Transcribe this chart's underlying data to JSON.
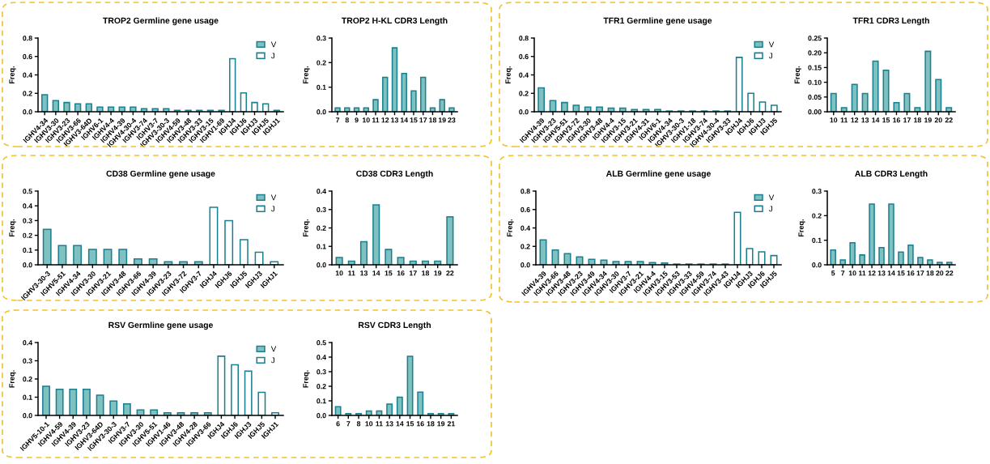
{
  "chart_data": [
    {
      "type": "bar",
      "title": "TROP2 Germline gene usage",
      "ylabel": "Freq.",
      "legend": "top right",
      "categories": [
        "IGHV4-34",
        "IGHV3-30",
        "IGHV3-23",
        "IGHV3-66",
        "IGHV3-64D",
        "IGHV6-1",
        "IGHV4-4",
        "IGHV4-39",
        "IGHV4-30-4",
        "IGHV3-74",
        "IGHV3-7",
        "IGHV3-30-3",
        "IGHV4-59",
        "IGHV3-48",
        "IGHV3-33",
        "IGHV3-15",
        "IGHV1-69",
        "IGHJ4",
        "IGHJ6",
        "IGHJ3",
        "IGHJ5",
        "IGHJ1"
      ],
      "series": [
        {
          "name": "V",
          "color": "#7fc0c0",
          "values": [
            0.185,
            0.12,
            0.1,
            0.085,
            0.085,
            0.05,
            0.05,
            0.05,
            0.05,
            0.033,
            0.033,
            0.033,
            0.016,
            0.016,
            0.016,
            0.016,
            0.016,
            null,
            null,
            null,
            null,
            null
          ]
        },
        {
          "name": "J",
          "color": "#ffffff",
          "values": [
            null,
            null,
            null,
            null,
            null,
            null,
            null,
            null,
            null,
            null,
            null,
            null,
            null,
            null,
            null,
            null,
            null,
            0.575,
            0.205,
            0.1,
            0.085,
            0.016
          ]
        }
      ],
      "ylim": [
        0,
        0.8
      ],
      "yticks": [
        {
          "value": 0,
          "label": "0.0"
        },
        {
          "value": 0.2,
          "label": "0.2"
        },
        {
          "value": 0.4,
          "label": "0.4"
        },
        {
          "value": 0.6,
          "label": "0.6"
        },
        {
          "value": 0.8,
          "label": "0.8"
        }
      ]
    },
    {
      "type": "bar",
      "title": "TROP2 H-KL CDR3 Length",
      "ylabel": "Freq.",
      "categories": [
        "7",
        "8",
        "9",
        "10",
        "11",
        "12",
        "13",
        "14",
        "15",
        "17",
        "18",
        "19",
        "23"
      ],
      "color": "#7fc0c0",
      "values": [
        0.016,
        0.016,
        0.016,
        0.016,
        0.049,
        0.14,
        0.26,
        0.156,
        0.085,
        0.14,
        0.016,
        0.049,
        0.016
      ],
      "ylim": [
        0,
        0.3
      ],
      "yticks": [
        {
          "value": 0,
          "label": "0.0"
        },
        {
          "value": 0.1,
          "label": "0.1"
        },
        {
          "value": 0.2,
          "label": "0.2"
        },
        {
          "value": 0.3,
          "label": "0.3"
        }
      ]
    },
    {
      "type": "bar",
      "title": "TFR1 Germline gene usage",
      "ylabel": "Freq.",
      "legend": "top right",
      "categories": [
        "IGHV4-39",
        "IGHV3-23",
        "IGHV5-51",
        "IGHV3-72",
        "IGHV3-30",
        "IGHV3-48",
        "IGHV4-4",
        "IGHV3-15",
        "IGHV3-21",
        "IGHV4-31",
        "IGHV6-1",
        "IGHV4-34",
        "IGHV3-30-3",
        "IGHV1-18",
        "IGHV3-74",
        "IGHV4-30-4",
        "IGHV3-33",
        "IGHJ4",
        "IGHJ6",
        "IGHJ3",
        "IGHJ5"
      ],
      "series": [
        {
          "name": "V",
          "color": "#7fc0c0",
          "values": [
            0.26,
            0.12,
            0.1,
            0.07,
            0.05,
            0.05,
            0.04,
            0.04,
            0.025,
            0.025,
            0.025,
            0.008,
            0.008,
            0.008,
            0.008,
            0.008,
            0.008,
            null,
            null,
            null,
            null
          ]
        },
        {
          "name": "J",
          "color": "#ffffff",
          "values": [
            null,
            null,
            null,
            null,
            null,
            null,
            null,
            null,
            null,
            null,
            null,
            null,
            null,
            null,
            null,
            null,
            null,
            0.59,
            0.2,
            0.105,
            0.07
          ]
        }
      ],
      "ylim": [
        0,
        0.8
      ],
      "yticks": [
        {
          "value": 0,
          "label": "0.0"
        },
        {
          "value": 0.2,
          "label": "0.2"
        },
        {
          "value": 0.4,
          "label": "0.4"
        },
        {
          "value": 0.6,
          "label": "0.6"
        },
        {
          "value": 0.8,
          "label": "0.8"
        }
      ]
    },
    {
      "type": "bar",
      "title": "TFR1 CDR3 Length",
      "ylabel": "Freq.",
      "categories": [
        "10",
        "11",
        "12",
        "13",
        "14",
        "15",
        "16",
        "17",
        "18",
        "19",
        "20",
        "22"
      ],
      "color": "#7fc0c0",
      "values": [
        0.062,
        0.014,
        0.093,
        0.062,
        0.172,
        0.141,
        0.031,
        0.062,
        0.014,
        0.205,
        0.109,
        0.014
      ],
      "ylim": [
        0,
        0.25
      ],
      "yticks": [
        {
          "value": 0,
          "label": "0.00"
        },
        {
          "value": 0.05,
          "label": "0.05"
        },
        {
          "value": 0.1,
          "label": "0.10"
        },
        {
          "value": 0.15,
          "label": "0.15"
        },
        {
          "value": 0.2,
          "label": "0.20"
        },
        {
          "value": 0.25,
          "label": "0.25"
        }
      ]
    },
    {
      "type": "bar",
      "title": "CD38 Germline gene usage",
      "ylabel": "Freq.",
      "legend": "top right",
      "categories": [
        "IGHV3-30-3",
        "IGHV5-51",
        "IGHV4-34",
        "IGHV3-30",
        "IGHV3-21",
        "IGHV3-48",
        "IGHV3-66",
        "IGHV4-39",
        "IGHV3-23",
        "IGHV3-72",
        "IGHV3-7",
        "IGHJ4",
        "IGHJ6",
        "IGHJ5",
        "IGHJ3",
        "IGHJ1"
      ],
      "series": [
        {
          "name": "V",
          "color": "#7fc0c0",
          "values": [
            0.24,
            0.13,
            0.13,
            0.105,
            0.105,
            0.105,
            0.04,
            0.04,
            0.02,
            0.02,
            0.02,
            null,
            null,
            null,
            null,
            null
          ]
        },
        {
          "name": "J",
          "color": "#ffffff",
          "values": [
            null,
            null,
            null,
            null,
            null,
            null,
            null,
            null,
            null,
            null,
            null,
            0.39,
            0.3,
            0.17,
            0.085,
            0.02
          ]
        }
      ],
      "ylim": [
        0,
        0.5
      ],
      "yticks": [
        {
          "value": 0,
          "label": "0.0"
        },
        {
          "value": 0.1,
          "label": "0.1"
        },
        {
          "value": 0.2,
          "label": "0.2"
        },
        {
          "value": 0.3,
          "label": "0.3"
        },
        {
          "value": 0.4,
          "label": "0.4"
        },
        {
          "value": 0.5,
          "label": "0.5"
        }
      ]
    },
    {
      "type": "bar",
      "title": "CD38 CDR3 Length",
      "ylabel": "Freq.",
      "categories": [
        "10",
        "11",
        "13",
        "14",
        "15",
        "16",
        "17",
        "18",
        "19",
        "22"
      ],
      "color": "#7fc0c0",
      "values": [
        0.04,
        0.02,
        0.125,
        0.325,
        0.083,
        0.04,
        0.02,
        0.02,
        0.02,
        0.26
      ],
      "ylim": [
        0,
        0.4
      ],
      "yticks": [
        {
          "value": 0,
          "label": "0.0"
        },
        {
          "value": 0.1,
          "label": "0.1"
        },
        {
          "value": 0.2,
          "label": "0.2"
        },
        {
          "value": 0.3,
          "label": "0.3"
        },
        {
          "value": 0.4,
          "label": "0.4"
        }
      ]
    },
    {
      "type": "bar",
      "title": "ALB Germline gene usage",
      "ylabel": "Freq.",
      "legend": "top right",
      "categories": [
        "IGHV4-39",
        "IGHV3-66",
        "IGHV3-48",
        "IGHV3-23",
        "IGHV3-49",
        "IGHV4-34",
        "IGHV3-30",
        "IGHV3-7",
        "IGHV3-21",
        "IGHV4-4",
        "IGHV3-15",
        "IGHV3-53",
        "IGHV3-33",
        "IGHV4-59",
        "IGHV3-74",
        "IGHV3-43",
        "IGHJ4",
        "IGHJ3",
        "IGHJ6",
        "IGHJ5"
      ],
      "series": [
        {
          "name": "V",
          "color": "#7fc0c0",
          "values": [
            0.27,
            0.16,
            0.12,
            0.085,
            0.06,
            0.05,
            0.035,
            0.035,
            0.035,
            0.025,
            0.02,
            0.008,
            0.008,
            0.008,
            0.008,
            0.008,
            null,
            null,
            null,
            null
          ]
        },
        {
          "name": "J",
          "color": "#ffffff",
          "values": [
            null,
            null,
            null,
            null,
            null,
            null,
            null,
            null,
            null,
            null,
            null,
            null,
            null,
            null,
            null,
            null,
            0.57,
            0.175,
            0.14,
            0.1
          ]
        }
      ],
      "ylim": [
        0,
        0.8
      ],
      "yticks": [
        {
          "value": 0,
          "label": "0.0"
        },
        {
          "value": 0.2,
          "label": "0.2"
        },
        {
          "value": 0.4,
          "label": "0.4"
        },
        {
          "value": 0.6,
          "label": "0.6"
        },
        {
          "value": 0.8,
          "label": "0.8"
        }
      ]
    },
    {
      "type": "bar",
      "title": "ALB CDR3 Length",
      "ylabel": "Freq.",
      "categories": [
        "5",
        "7",
        "10",
        "11",
        "12",
        "13",
        "14",
        "15",
        "16",
        "17",
        "18",
        "20",
        "22"
      ],
      "color": "#7fc0c0",
      "values": [
        0.06,
        0.02,
        0.09,
        0.04,
        0.247,
        0.07,
        0.247,
        0.052,
        0.08,
        0.03,
        0.02,
        0.01,
        0.01
      ],
      "ylim": [
        0,
        0.3
      ],
      "yticks": [
        {
          "value": 0,
          "label": "0.0"
        },
        {
          "value": 0.1,
          "label": "0.1"
        },
        {
          "value": 0.2,
          "label": "0.2"
        },
        {
          "value": 0.3,
          "label": "0.3"
        }
      ]
    },
    {
      "type": "bar",
      "title": "RSV Germline gene usage",
      "ylabel": "Freq.",
      "legend": "top right",
      "categories": [
        "IGHV5-10-1",
        "IGHV4-59",
        "IGHV4-39",
        "IGHV3-23",
        "IGHV3-64D",
        "IGHV3-30-3",
        "IGHV3-7",
        "IGHV3-30",
        "IGHV5-51",
        "IGHV1-46",
        "IGHV3-48",
        "IGHV4-28",
        "IGHV3-66",
        "IGHJ4",
        "IGHJ6",
        "IGHJ3",
        "IGHJ5",
        "IGHJ1"
      ],
      "series": [
        {
          "name": "V",
          "color": "#7fc0c0",
          "values": [
            0.16,
            0.143,
            0.143,
            0.143,
            0.111,
            0.079,
            0.063,
            0.03,
            0.03,
            0.014,
            0.014,
            0.014,
            0.014,
            null,
            null,
            null,
            null,
            null
          ]
        },
        {
          "name": "J",
          "color": "#ffffff",
          "values": [
            null,
            null,
            null,
            null,
            null,
            null,
            null,
            null,
            null,
            null,
            null,
            null,
            null,
            0.325,
            0.278,
            0.243,
            0.127,
            0.014
          ]
        }
      ],
      "ylim": [
        0,
        0.4
      ],
      "yticks": [
        {
          "value": 0,
          "label": "0.0"
        },
        {
          "value": 0.1,
          "label": "0.1"
        },
        {
          "value": 0.2,
          "label": "0.2"
        },
        {
          "value": 0.3,
          "label": "0.3"
        },
        {
          "value": 0.4,
          "label": "0.4"
        }
      ]
    },
    {
      "type": "bar",
      "title": "RSV CDR3 Length",
      "ylabel": "Freq.",
      "categories": [
        "6",
        "7",
        "8",
        "10",
        "11",
        "13",
        "14",
        "15",
        "16",
        "18",
        "19",
        "21"
      ],
      "color": "#7fc0c0",
      "values": [
        0.06,
        0.012,
        0.012,
        0.03,
        0.03,
        0.078,
        0.125,
        0.405,
        0.16,
        0.012,
        0.012,
        0.012
      ],
      "ylim": [
        0,
        0.5
      ],
      "yticks": [
        {
          "value": 0,
          "label": "0.0"
        },
        {
          "value": 0.1,
          "label": "0.1"
        },
        {
          "value": 0.2,
          "label": "0.2"
        },
        {
          "value": 0.3,
          "label": "0.3"
        },
        {
          "value": 0.4,
          "label": "0.4"
        },
        {
          "value": 0.5,
          "label": "0.5"
        }
      ]
    }
  ]
}
